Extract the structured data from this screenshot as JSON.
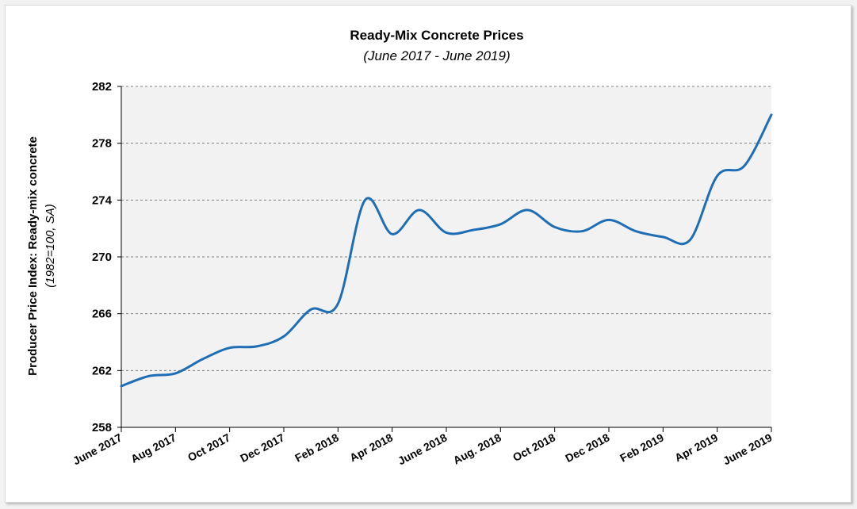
{
  "chart_data": {
    "type": "line",
    "title": "Ready-Mix Concrete Prices",
    "subtitle": "(June 2017 - June 2019)",
    "ylabel": "Producer Price Index: Ready-mix concrete",
    "ylabel_sub": "(1982=100, SA)",
    "xlabel": "",
    "ylim": [
      258,
      282
    ],
    "yticks": [
      "258",
      "262",
      "266",
      "270",
      "274",
      "278",
      "282"
    ],
    "xtick_labels": [
      "June 2017",
      "Aug 2017",
      "Oct 2017",
      "Dec 2017",
      "Feb 2018",
      "Apr 2018",
      "June 2018",
      "Aug. 2018",
      "Oct 2018",
      "Dec 2018",
      "Feb 2019",
      "Apr 2019",
      "June 2019"
    ],
    "x": [
      "Jun 2017",
      "Jul 2017",
      "Aug 2017",
      "Sep 2017",
      "Oct 2017",
      "Nov 2017",
      "Dec 2017",
      "Jan 2018",
      "Feb 2018",
      "Mar 2018",
      "Apr 2018",
      "May 2018",
      "Jun 2018",
      "Jul 2018",
      "Aug 2018",
      "Sep 2018",
      "Oct 2018",
      "Nov 2018",
      "Dec 2018",
      "Jan 2019",
      "Feb 2019",
      "Mar 2019",
      "Apr 2019",
      "May 2019",
      "Jun 2019"
    ],
    "series": [
      {
        "name": "",
        "color": "#1f6eb5",
        "values": [
          260.9,
          261.6,
          261.8,
          262.8,
          263.6,
          263.7,
          264.4,
          266.3,
          266.7,
          274.0,
          271.6,
          273.3,
          271.7,
          271.9,
          272.3,
          273.3,
          272.1,
          271.8,
          272.6,
          271.8,
          271.4,
          271.2,
          275.7,
          276.4,
          280.0
        ]
      }
    ],
    "grid": true,
    "plot_background": "#f2f2f2",
    "grid_color": "#7f7f7f"
  }
}
